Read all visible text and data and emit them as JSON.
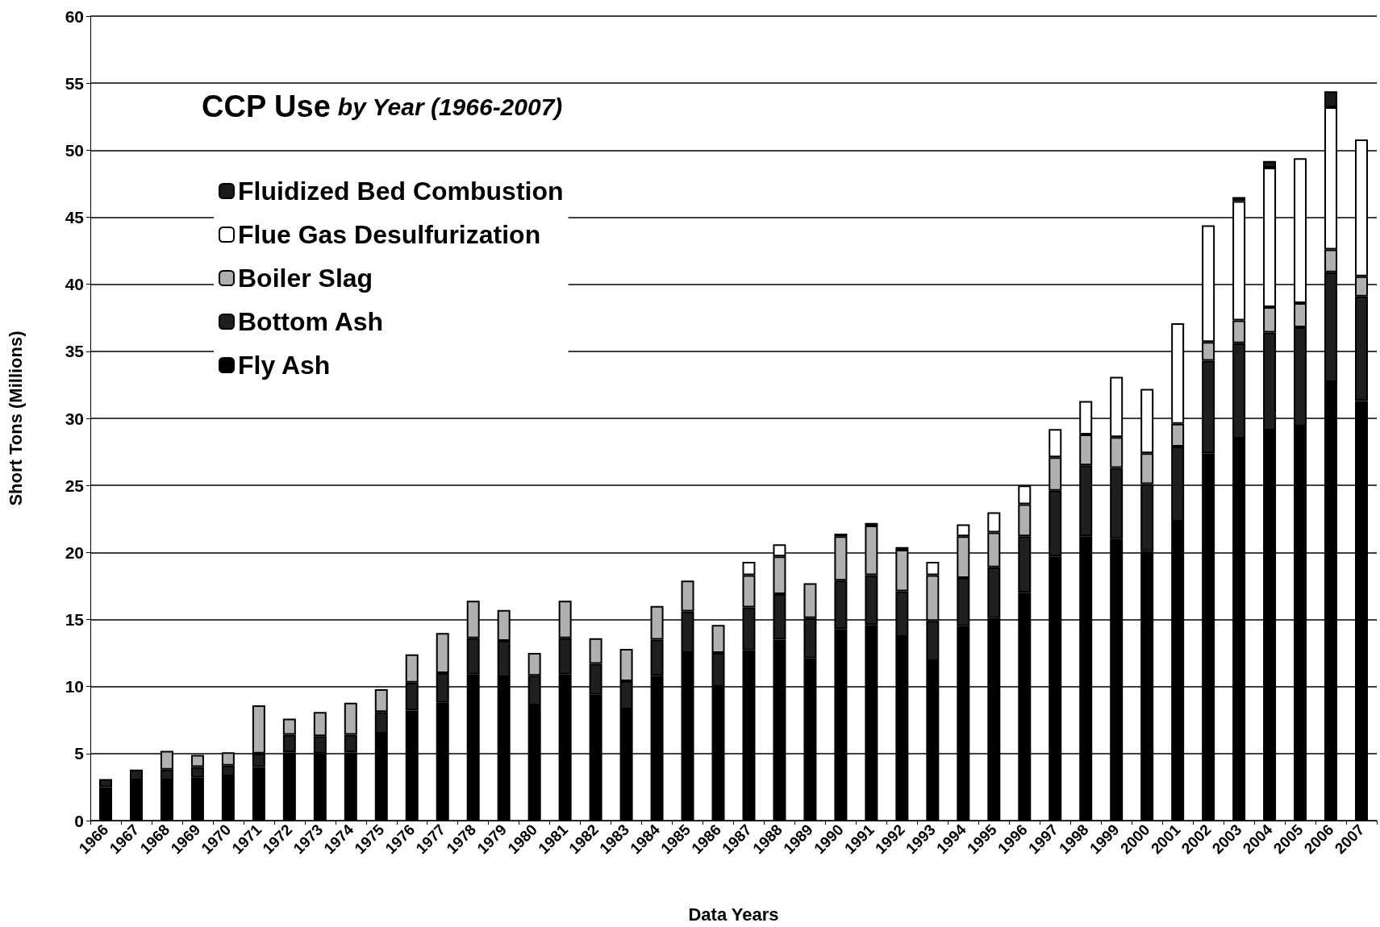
{
  "chart_data": {
    "type": "bar",
    "title": "CCP Use by Year (1966-2007)",
    "xlabel": "Data Years",
    "ylabel": "Short Tons (Millions)",
    "categories": [
      "1966",
      "1967",
      "1968",
      "1969",
      "1970",
      "1971",
      "1972",
      "1973",
      "1974",
      "1975",
      "1976",
      "1977",
      "1978",
      "1979",
      "1980",
      "1981",
      "1982",
      "1983",
      "1984",
      "1985",
      "1986",
      "1987",
      "1988",
      "1989",
      "1990",
      "1991",
      "1992",
      "1993",
      "1994",
      "1995",
      "1996",
      "1997",
      "1998",
      "1999",
      "2000",
      "2001",
      "2002",
      "2003",
      "2004",
      "2005",
      "2006",
      "2007"
    ],
    "stacked": true,
    "ylim": [
      0,
      60
    ],
    "yticks": [
      0,
      5,
      10,
      15,
      20,
      25,
      30,
      35,
      40,
      45,
      50,
      55,
      60
    ],
    "grid": "y",
    "legend": "top left",
    "series": [
      {
        "name": "Fly Ash",
        "color": "#000000",
        "values": [
          2.5,
          3.0,
          3.0,
          3.2,
          3.3,
          4.0,
          5.1,
          5.0,
          5.1,
          6.5,
          8.2,
          8.8,
          10.9,
          10.7,
          8.6,
          10.9,
          9.4,
          8.3,
          10.8,
          12.5,
          10.0,
          12.7,
          13.5,
          12.1,
          14.3,
          14.6,
          13.7,
          11.9,
          14.5,
          15.1,
          17.0,
          19.7,
          21.2,
          21.0,
          20.1,
          22.3,
          27.4,
          28.5,
          29.1,
          29.4,
          32.7,
          31.3
        ]
      },
      {
        "name": "Bottom Ash",
        "color": "#1f1f1f",
        "values": [
          0.6,
          0.8,
          0.8,
          0.8,
          0.8,
          1.0,
          1.3,
          1.3,
          1.3,
          1.6,
          2.1,
          2.2,
          2.7,
          2.7,
          2.2,
          2.7,
          2.3,
          2.1,
          2.7,
          3.1,
          2.5,
          3.2,
          3.4,
          3.0,
          3.6,
          3.7,
          3.4,
          3.0,
          3.6,
          3.8,
          4.2,
          4.9,
          5.3,
          5.3,
          5.0,
          5.6,
          6.9,
          7.1,
          7.3,
          7.4,
          8.2,
          7.8
        ]
      },
      {
        "name": "Boiler Slag",
        "color": "#b0b0b0",
        "values": [
          0,
          0,
          1.4,
          0.9,
          1.0,
          3.6,
          1.2,
          1.8,
          2.4,
          1.7,
          2.1,
          3.0,
          2.8,
          2.3,
          1.7,
          2.8,
          1.9,
          2.4,
          2.5,
          2.3,
          2.1,
          2.4,
          2.8,
          2.6,
          3.3,
          3.7,
          3.1,
          3.4,
          3.1,
          2.6,
          2.4,
          2.5,
          2.3,
          2.3,
          2.3,
          1.7,
          1.4,
          1.7,
          1.9,
          1.8,
          1.7,
          1.5
        ]
      },
      {
        "name": "Flue Gas Desulfurization",
        "color": "#ffffff",
        "values": [
          0,
          0,
          0,
          0,
          0,
          0,
          0,
          0,
          0,
          0,
          0,
          0,
          0,
          0,
          0,
          0,
          0,
          0,
          0,
          0,
          0,
          1.0,
          0.9,
          0,
          0.2,
          0.2,
          0.2,
          1.0,
          0.9,
          1.5,
          1.4,
          2.1,
          2.5,
          4.5,
          4.8,
          7.5,
          8.7,
          8.9,
          10.4,
          10.8,
          10.6,
          10.2
        ]
      },
      {
        "name": "Fluidized Bed Combustion",
        "color": "#1a1a1a",
        "values": [
          0,
          0,
          0,
          0,
          0,
          0,
          0,
          0,
          0,
          0,
          0,
          0,
          0,
          0,
          0,
          0,
          0,
          0,
          0,
          0,
          0,
          0,
          0,
          0,
          0,
          0,
          0,
          0,
          0,
          0,
          0,
          0,
          0,
          0,
          0,
          0,
          0,
          0.3,
          0.5,
          0,
          1.2,
          0
        ]
      }
    ]
  }
}
